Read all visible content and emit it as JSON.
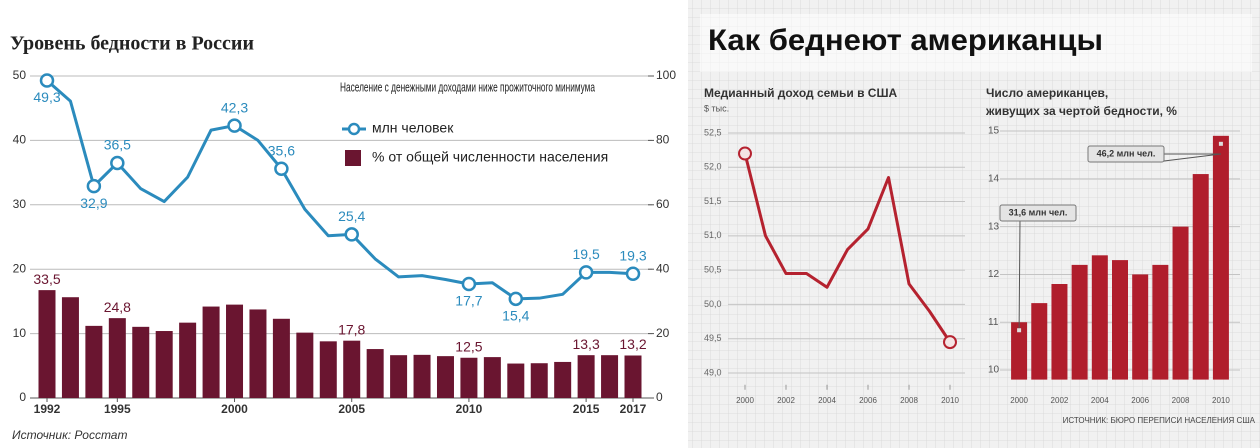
{
  "chart_data": [
    {
      "type": "combo",
      "title": "Уровень бедности в России",
      "legend_title": "Население с денежными доходами ниже прожиточного минимума",
      "categories": [
        "1992",
        null,
        null,
        "1995",
        null,
        null,
        null,
        null,
        "2000",
        null,
        null,
        null,
        null,
        "2005",
        null,
        null,
        null,
        null,
        "2010",
        null,
        null,
        null,
        null,
        "2015",
        null,
        "2017"
      ],
      "series": [
        {
          "name": "млн человек",
          "type": "line",
          "color": "#2b8bbd",
          "values": [
            49.3,
            46.1,
            32.9,
            36.5,
            32.5,
            30.5,
            34.3,
            41.6,
            42.3,
            40.0,
            35.6,
            29.3,
            25.2,
            25.4,
            21.6,
            18.8,
            19.0,
            18.4,
            17.7,
            17.9,
            15.4,
            15.5,
            16.1,
            19.5,
            19.5,
            19.3
          ],
          "value_labels": [
            "49,3",
            null,
            "32,9",
            "36,5",
            null,
            null,
            null,
            null,
            "42,3",
            null,
            "35,6",
            null,
            null,
            "25,4",
            null,
            null,
            null,
            null,
            "17,7",
            null,
            "15,4",
            null,
            null,
            "19,5",
            null,
            "19,3"
          ]
        },
        {
          "name": "% от общей численности населения",
          "type": "bar",
          "axis": "y2",
          "color": "#6a1530",
          "values": [
            33.5,
            31.3,
            22.4,
            24.8,
            22.1,
            20.8,
            23.4,
            28.4,
            29,
            27.5,
            24.6,
            20.3,
            17.6,
            17.8,
            15.2,
            13.3,
            13.4,
            13.0,
            12.5,
            12.7,
            10.7,
            10.8,
            11.2,
            13.3,
            13.3,
            13.2
          ],
          "value_labels": [
            "33,5",
            null,
            null,
            "24,8",
            null,
            null,
            null,
            null,
            null,
            null,
            null,
            null,
            null,
            "17,8",
            null,
            null,
            null,
            null,
            "12,5",
            null,
            null,
            null,
            null,
            "13,3",
            null,
            "13,2"
          ]
        }
      ],
      "ylim": [
        0,
        50
      ],
      "yticks": [
        0,
        10,
        20,
        30,
        40,
        50
      ],
      "y2lim": [
        0,
        100
      ],
      "y2ticks": [
        0,
        20,
        40,
        60,
        80,
        100
      ],
      "grid": true,
      "source": "Источник: Росстат"
    },
    {
      "type": "line",
      "title": "Медианный доход семьи в США",
      "subtitle": "$ тыс.",
      "color": "#b5222f",
      "x": [
        2000,
        2001,
        2002,
        2003,
        2004,
        2005,
        2006,
        2007,
        2008,
        2009,
        2010
      ],
      "values": [
        52.2,
        51.0,
        50.45,
        50.45,
        50.25,
        50.8,
        51.1,
        51.85,
        50.3,
        49.9,
        49.45
      ],
      "xlim": [
        2000,
        2010
      ],
      "xticks": [
        2000,
        2002,
        2004,
        2006,
        2008,
        2010
      ],
      "ylim": [
        48.8,
        52.8
      ],
      "yticks": [
        {
          "value": 49.0,
          "label": "49,0"
        },
        {
          "value": 49.5,
          "label": "49,5"
        },
        {
          "value": 50.0,
          "label": "50,0"
        },
        {
          "value": 50.5,
          "label": "50,5"
        },
        {
          "value": 51.0,
          "label": "51,0"
        },
        {
          "value": 51.5,
          "label": "51,5"
        },
        {
          "value": 52.0,
          "label": "52,0"
        },
        {
          "value": 52.5,
          "label": "52,5"
        }
      ]
    },
    {
      "type": "bar",
      "title": [
        "Число американцев,",
        "живущих за чертой бедности, %"
      ],
      "color": "#b01e2c",
      "x": [
        2000,
        2001,
        2002,
        2003,
        2004,
        2005,
        2006,
        2007,
        2008,
        2009,
        2010
      ],
      "values": [
        11.0,
        11.4,
        11.8,
        12.2,
        12.4,
        12.3,
        12.0,
        12.2,
        13.0,
        14.1,
        14.9
      ],
      "xlim": [
        1999.5,
        2010.5
      ],
      "xticks": [
        2000,
        2002,
        2004,
        2006,
        2008,
        2010
      ],
      "ylim": [
        9.8,
        15.3
      ],
      "yticks": [
        10,
        11,
        12,
        13,
        14,
        15
      ],
      "annotations": [
        "31,6 млн чел.",
        "46,2 млн чел."
      ],
      "source": "ИСТОЧНИК: БЮРО ПЕРЕПИСИ НАСЕЛЕНИЯ США"
    }
  ],
  "panel": {
    "title": "Как беднеют американцы"
  }
}
